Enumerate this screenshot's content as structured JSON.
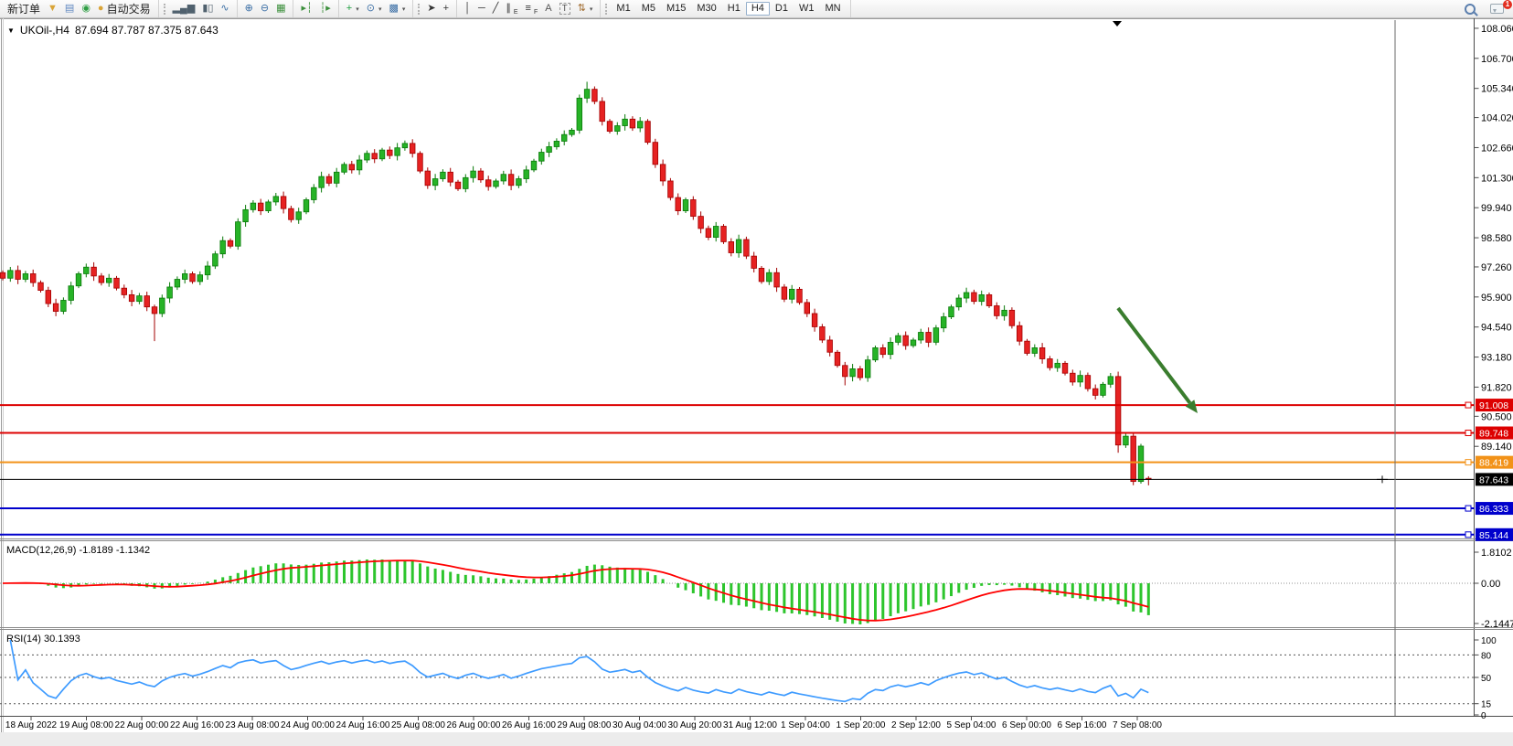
{
  "toolbar": {
    "new_order": "新订单",
    "auto_trading": "自动交易",
    "groups": [
      {
        "grip": false,
        "items": [
          {
            "name": "new-order-button",
            "label": "新订单",
            "bind": "toolbar.new_order"
          },
          {
            "name": "funnel-icon",
            "glyph": "▼",
            "color": "#d9a437"
          },
          {
            "name": "publisher-icon",
            "glyph": "▤",
            "color": "#5f87c0"
          },
          {
            "name": "news-signal-icon",
            "glyph": "◉",
            "color": "#2f9e44"
          },
          {
            "name": "autotrading-button",
            "glyph": "●",
            "color": "#d9a437",
            "label": "自动交易",
            "bind": "toolbar.auto_trading"
          }
        ]
      },
      {
        "grip": true,
        "items": [
          {
            "name": "bar-chart-icon",
            "glyph": "▂▄▆",
            "color": "#50616e"
          },
          {
            "name": "candlestick-chart-icon",
            "glyph": "▮▯",
            "color": "#50616e"
          },
          {
            "name": "line-chart-icon",
            "glyph": "∿",
            "color": "#3a6ea5"
          }
        ]
      },
      {
        "grip": false,
        "items": [
          {
            "name": "zoom-in-icon",
            "glyph": "⊕",
            "color": "#3a6ea5"
          },
          {
            "name": "zoom-out-icon",
            "glyph": "⊖",
            "color": "#3a6ea5"
          },
          {
            "name": "tile-windows-icon",
            "glyph": "▦",
            "color": "#3b8f3b"
          }
        ]
      },
      {
        "grip": false,
        "items": [
          {
            "name": "auto-scroll-icon",
            "glyph": "▸┆",
            "color": "#3b8f3b"
          },
          {
            "name": "chart-shift-icon",
            "glyph": "┆▸",
            "color": "#3b8f3b"
          }
        ]
      },
      {
        "grip": false,
        "items": [
          {
            "name": "add-indicator-icon",
            "glyph": "+",
            "color": "#1e9e3e",
            "dropdown": true
          },
          {
            "name": "periods-icon",
            "glyph": "⊙",
            "color": "#3a6ea5",
            "dropdown": true
          },
          {
            "name": "templates-icon",
            "glyph": "▩",
            "color": "#3a6ea5",
            "dropdown": true
          }
        ]
      },
      {
        "grip": true,
        "items": [
          {
            "name": "cursor-icon",
            "glyph": "➤",
            "color": "#333333"
          },
          {
            "name": "crosshair-icon",
            "glyph": "+",
            "color": "#333333"
          }
        ]
      },
      {
        "grip": false,
        "items": [
          {
            "name": "vertical-line-icon",
            "glyph": "│",
            "color": "#333333"
          },
          {
            "name": "horizontal-line-icon",
            "glyph": "─",
            "color": "#333333"
          },
          {
            "name": "trendline-icon",
            "glyph": "╱",
            "color": "#333333"
          },
          {
            "name": "channel-icon",
            "glyph": "∥",
            "sub": "E",
            "color": "#333333"
          },
          {
            "name": "fibonacci-icon",
            "glyph": "≡",
            "sub": "F",
            "color": "#333333"
          },
          {
            "name": "text-icon",
            "glyph": "A",
            "color": "#555555"
          },
          {
            "name": "label-icon",
            "glyph": "T",
            "color": "#555555",
            "boxed": true
          },
          {
            "name": "arrows-icon",
            "glyph": "⇅",
            "color": "#a06a2c",
            "dropdown": true
          }
        ]
      }
    ],
    "timeframes": [
      "M1",
      "M5",
      "M15",
      "M30",
      "H1",
      "H4",
      "D1",
      "W1",
      "MN"
    ],
    "active_timeframe": "H4",
    "chat": {
      "badge": "1"
    }
  },
  "chart": {
    "title_symbol": "UKOil-,H4",
    "title_ohlc": "87.694 87.787 87.375 87.643",
    "price_axis_ticks": [
      "108.060",
      "106.700",
      "105.340",
      "104.020",
      "102.660",
      "101.300",
      "99.940",
      "98.580",
      "97.260",
      "95.900",
      "94.540",
      "93.180",
      "91.820",
      "90.500",
      "89.140"
    ],
    "price_lines": [
      {
        "price": 91.008,
        "label": "91.008",
        "color": "#dd0000"
      },
      {
        "price": 89.748,
        "label": "89.748",
        "color": "#dd0000"
      },
      {
        "price": 88.419,
        "label": "88.419",
        "color": "#f29218"
      },
      {
        "price": 86.333,
        "label": "86.333",
        "color": "#0000cc"
      },
      {
        "price": 85.144,
        "label": "85.144",
        "color": "#0000cc"
      }
    ],
    "current_price": {
      "price": 87.643,
      "label": "87.643",
      "color": "#000000"
    },
    "macd": {
      "label": "MACD(12,26,9) -1.8189 -1.1342",
      "main_value": "-1.8189",
      "signal_value": "-1.1342",
      "axis": [
        "1.8102",
        "0.00",
        "-2.1447"
      ]
    },
    "rsi": {
      "label": "RSI(14) 30.1393",
      "value": "30.1393",
      "axis": [
        "100",
        "80",
        "50",
        "15",
        "0"
      ],
      "levels": [
        80,
        50,
        15
      ]
    }
  },
  "chart_data": {
    "type": "candlestick",
    "symbol": "UKOil-",
    "timeframe": "H4",
    "ylim": [
      84.97,
      108.43
    ],
    "time_labels": [
      "18 Aug 2022",
      "19 Aug 08:00",
      "22 Aug 00:00",
      "22 Aug 16:00",
      "23 Aug 08:00",
      "24 Aug 00:00",
      "24 Aug 16:00",
      "25 Aug 08:00",
      "26 Aug 00:00",
      "26 Aug 16:00",
      "29 Aug 08:00",
      "30 Aug 04:00",
      "30 Aug 20:00",
      "31 Aug 12:00",
      "1 Sep 04:00",
      "1 Sep 20:00",
      "2 Sep 12:00",
      "5 Sep 04:00",
      "6 Sep 00:00",
      "6 Sep 16:00",
      "7 Sep 08:00"
    ],
    "first_open": 97.0,
    "closes": [
      96.75,
      97.1,
      96.7,
      96.95,
      96.55,
      96.2,
      95.6,
      95.25,
      95.75,
      96.4,
      96.95,
      97.25,
      96.85,
      96.55,
      96.75,
      96.3,
      96.0,
      95.7,
      95.95,
      95.45,
      95.15,
      95.85,
      96.35,
      96.7,
      96.95,
      96.6,
      96.9,
      97.3,
      97.85,
      98.45,
      98.2,
      99.3,
      99.85,
      100.15,
      99.8,
      100.2,
      100.45,
      99.9,
      99.4,
      99.75,
      100.3,
      100.85,
      101.35,
      101.05,
      101.55,
      101.9,
      101.65,
      102.1,
      102.4,
      102.15,
      102.55,
      102.3,
      102.65,
      102.85,
      102.4,
      101.6,
      100.95,
      101.25,
      101.55,
      101.1,
      100.8,
      101.3,
      101.6,
      101.2,
      100.9,
      101.15,
      101.45,
      100.95,
      101.25,
      101.65,
      102.05,
      102.45,
      102.7,
      102.95,
      103.25,
      103.45,
      104.9,
      105.3,
      104.75,
      103.85,
      103.4,
      103.65,
      103.95,
      103.55,
      103.85,
      102.9,
      101.9,
      101.15,
      100.4,
      99.8,
      100.3,
      99.55,
      99.0,
      98.6,
      99.1,
      98.4,
      97.9,
      98.5,
      97.75,
      97.2,
      96.6,
      97.0,
      96.35,
      95.8,
      96.25,
      95.65,
      95.15,
      94.55,
      93.95,
      93.4,
      92.8,
      92.3,
      92.65,
      92.25,
      93.05,
      93.6,
      93.3,
      93.85,
      94.15,
      93.7,
      93.95,
      94.3,
      93.85,
      94.5,
      95.0,
      95.45,
      95.85,
      96.1,
      95.7,
      96.0,
      95.5,
      95.05,
      95.3,
      94.6,
      93.9,
      93.35,
      93.6,
      93.1,
      92.7,
      92.9,
      92.45,
      92.05,
      92.35,
      91.75,
      91.45,
      91.95,
      92.3,
      89.2,
      89.6,
      87.55,
      89.15,
      87.643
    ],
    "overrides": {
      "20": {
        "l": 93.9
      },
      "77": {
        "h": 105.64
      },
      "111": {
        "l": 91.9
      },
      "147": {
        "l": 88.85
      },
      "149": {
        "l": 87.38
      },
      "151": {
        "o": 87.694,
        "h": 87.787,
        "l": 87.375,
        "c": 87.643
      }
    },
    "up_color": "#27b327",
    "down_color": "#e62222",
    "up_border": "#0a7a0a",
    "down_border": "#a30000",
    "macd_color": "#2dc52d",
    "signal_color": "#ff0000",
    "rsi_color": "#3e9bff",
    "arrow": {
      "from": [
        1223,
        337
      ],
      "to": [
        1310,
        452
      ],
      "color": "#3a7d2e"
    },
    "vertical_line_x": 1526,
    "indicators": [
      {
        "name": "MACD",
        "params": [
          12,
          26,
          9
        ]
      },
      {
        "name": "RSI",
        "params": [
          14
        ]
      }
    ]
  }
}
